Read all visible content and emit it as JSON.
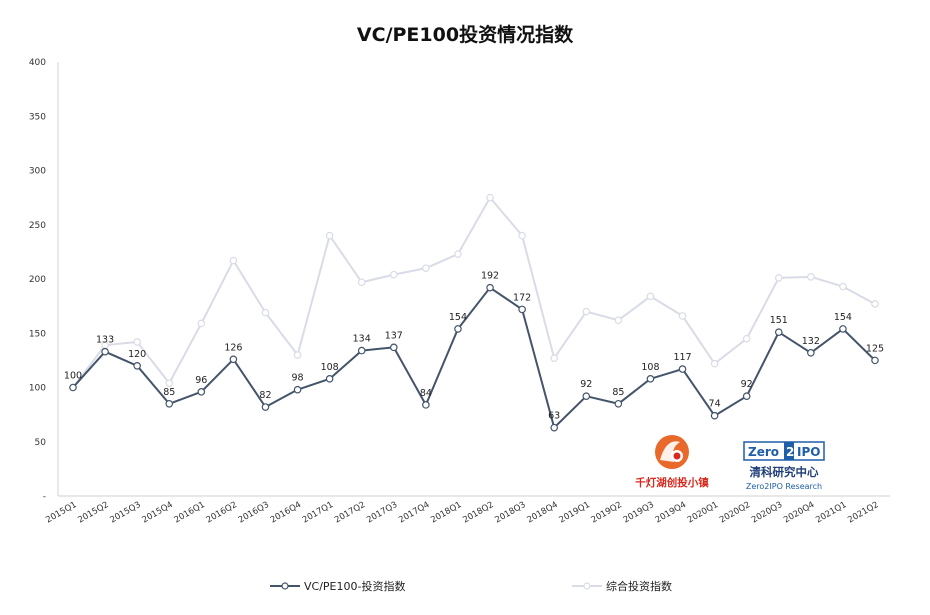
{
  "chart_data": {
    "type": "line",
    "title": "VC/PE100投资情况指数",
    "categories": [
      "2015Q1",
      "2015Q2",
      "2015Q3",
      "2015Q4",
      "2016Q1",
      "2016Q2",
      "2016Q3",
      "2016Q4",
      "2017Q1",
      "2017Q2",
      "2017Q3",
      "2017Q4",
      "2018Q1",
      "2018Q2",
      "2018Q3",
      "2018Q4",
      "2019Q1",
      "2019Q2",
      "2019Q3",
      "2019Q4",
      "2020Q1",
      "2020Q2",
      "2020Q3",
      "2020Q4",
      "2021Q1",
      "2021Q2"
    ],
    "series": [
      {
        "name": "VC/PE100-投资指数",
        "color": "#44546a",
        "labeled": true,
        "values": [
          100,
          133,
          120,
          85,
          96,
          126,
          82,
          98,
          108,
          134,
          137,
          84,
          154,
          192,
          172,
          63,
          92,
          85,
          108,
          117,
          74,
          92,
          151,
          132,
          154,
          125
        ]
      },
      {
        "name": "综合投资指数",
        "color": "#d9dce6",
        "labeled": false,
        "values": [
          100,
          139,
          142,
          104,
          159,
          217,
          169,
          130,
          240,
          197,
          204,
          210,
          223,
          275,
          240,
          127,
          170,
          162,
          184,
          166,
          122,
          145,
          201,
          202,
          193,
          177
        ]
      }
    ],
    "ylim": [
      0,
      400
    ],
    "yticks": [
      "-",
      "50",
      "100",
      "150",
      "200",
      "250",
      "300",
      "350",
      "400"
    ],
    "grid": false,
    "legend_position": "bottom"
  },
  "logos": {
    "left_logo_text": "千灯湖创投小镇",
    "right_logo_text_top": "Zero2IPO",
    "right_logo_text_mid": "清科研究中心",
    "right_logo_text_bottom": "Zero2IPO Research"
  }
}
